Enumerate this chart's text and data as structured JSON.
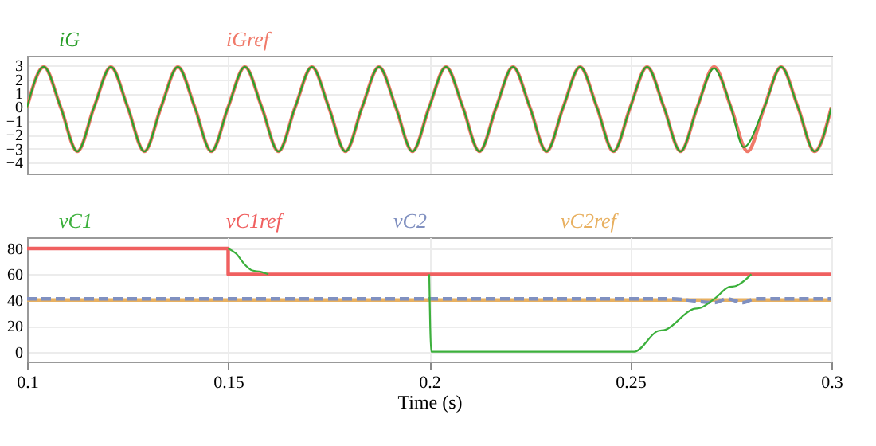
{
  "chart_data": [
    {
      "type": "line",
      "grid": true,
      "tick_labels": "y",
      "xlim": [
        0.1,
        0.3
      ],
      "xticks": [
        0.1,
        0.15,
        0.2,
        0.25,
        0.3
      ],
      "ylim": [
        -4.8,
        3.7
      ],
      "yticks": [
        -4,
        -3,
        -2,
        -1,
        0,
        1,
        2,
        3
      ],
      "series": [
        {
          "name": "iG",
          "color": "#2ca02c",
          "x": [
            0.1,
            0.10417,
            0.10833,
            0.1125,
            0.11667,
            0.12083,
            0.125,
            0.12917,
            0.13333,
            0.1375,
            0.14167,
            0.14583,
            0.15,
            0.15417,
            0.15833,
            0.1625,
            0.16667,
            0.17083,
            0.175,
            0.17917,
            0.18333,
            0.1875,
            0.19167,
            0.19583,
            0.2,
            0.20417,
            0.20833,
            0.2125,
            0.21667,
            0.22083,
            0.225,
            0.22917,
            0.23333,
            0.2375,
            0.24167,
            0.24583,
            0.25,
            0.25417,
            0.25833,
            0.2625,
            0.26667,
            0.27083,
            0.2725,
            0.275,
            0.2782,
            0.28333,
            0.2875,
            0.29167,
            0.29583,
            0.3
          ],
          "values": [
            0,
            2.9,
            0,
            -3.2,
            0,
            2.9,
            0,
            -3.2,
            0,
            2.9,
            0,
            -3.2,
            0,
            2.9,
            0,
            -3.2,
            0,
            2.9,
            0,
            -3.2,
            0,
            2.9,
            0,
            -3.2,
            0,
            2.9,
            0,
            -3.2,
            0,
            2.9,
            0,
            -3.2,
            0,
            2.9,
            0,
            -3.2,
            0,
            2.9,
            0,
            -3.2,
            0,
            2.8,
            2.1,
            0,
            -2.9,
            0,
            2.9,
            0,
            -3.2,
            0
          ]
        },
        {
          "name": "iGref",
          "color": "#f07a6a",
          "x": [
            0.1,
            0.10417,
            0.10833,
            0.1125,
            0.11667,
            0.12083,
            0.125,
            0.12917,
            0.13333,
            0.1375,
            0.14167,
            0.14583,
            0.15,
            0.15417,
            0.15833,
            0.1625,
            0.16667,
            0.17083,
            0.175,
            0.17917,
            0.18333,
            0.1875,
            0.19167,
            0.19583,
            0.2,
            0.20417,
            0.20833,
            0.2125,
            0.21667,
            0.22083,
            0.225,
            0.22917,
            0.23333,
            0.2375,
            0.24167,
            0.24583,
            0.25,
            0.25417,
            0.25833,
            0.2625,
            0.26667,
            0.27083,
            0.275,
            0.27917,
            0.28333,
            0.2875,
            0.29167,
            0.29583,
            0.3
          ],
          "values": [
            0,
            2.9,
            0,
            -3.2,
            0,
            2.9,
            0,
            -3.2,
            0,
            2.9,
            0,
            -3.2,
            0,
            2.9,
            0,
            -3.2,
            0,
            2.9,
            0,
            -3.2,
            0,
            2.9,
            0,
            -3.2,
            0,
            2.9,
            0,
            -3.2,
            0,
            2.9,
            0,
            -3.2,
            0,
            2.9,
            0,
            -3.2,
            0,
            2.9,
            0,
            -3.2,
            0,
            2.9,
            0,
            -3.2,
            0,
            2.9,
            0,
            -3.2,
            0
          ]
        }
      ]
    },
    {
      "type": "line",
      "grid": true,
      "xlabel": "Time (s)",
      "xlim": [
        0.1,
        0.3
      ],
      "xticks": [
        0.1,
        0.15,
        0.2,
        0.25,
        0.3
      ],
      "ylim": [
        -7.6,
        88.6
      ],
      "yticks": [
        0,
        20,
        40,
        60,
        80
      ],
      "series": [
        {
          "name": "vC1",
          "color": "#3cb03c",
          "x": [
            0.15,
            0.152,
            0.154,
            0.156,
            0.158,
            0.16,
            0.18,
            0.2,
            0.2005,
            0.225,
            0.251,
            0.2568,
            0.2587,
            0.2656,
            0.2675,
            0.2713,
            0.2744,
            0.2763,
            0.2801
          ],
          "values": [
            80,
            76,
            68,
            63,
            62,
            60,
            null,
            60,
            0,
            0,
            0,
            16,
            17,
            33,
            34,
            42,
            50,
            51,
            60
          ]
        },
        {
          "name": "vC1ref",
          "color": "#f06060",
          "type": "step",
          "x": [
            0.1,
            0.15,
            0.3
          ],
          "values": [
            80,
            60,
            60
          ]
        },
        {
          "name": "vC2",
          "color": "#8090c0",
          "line_style": "dashed",
          "x": [
            0.1,
            0.26,
            0.271,
            0.274,
            0.278,
            0.281,
            0.3
          ],
          "values": [
            41,
            41,
            38,
            41,
            38,
            41,
            41
          ]
        },
        {
          "name": "vC2ref",
          "color": "#e8b060",
          "x": [
            0.1,
            0.3
          ],
          "values": [
            40,
            40
          ]
        }
      ]
    }
  ]
}
